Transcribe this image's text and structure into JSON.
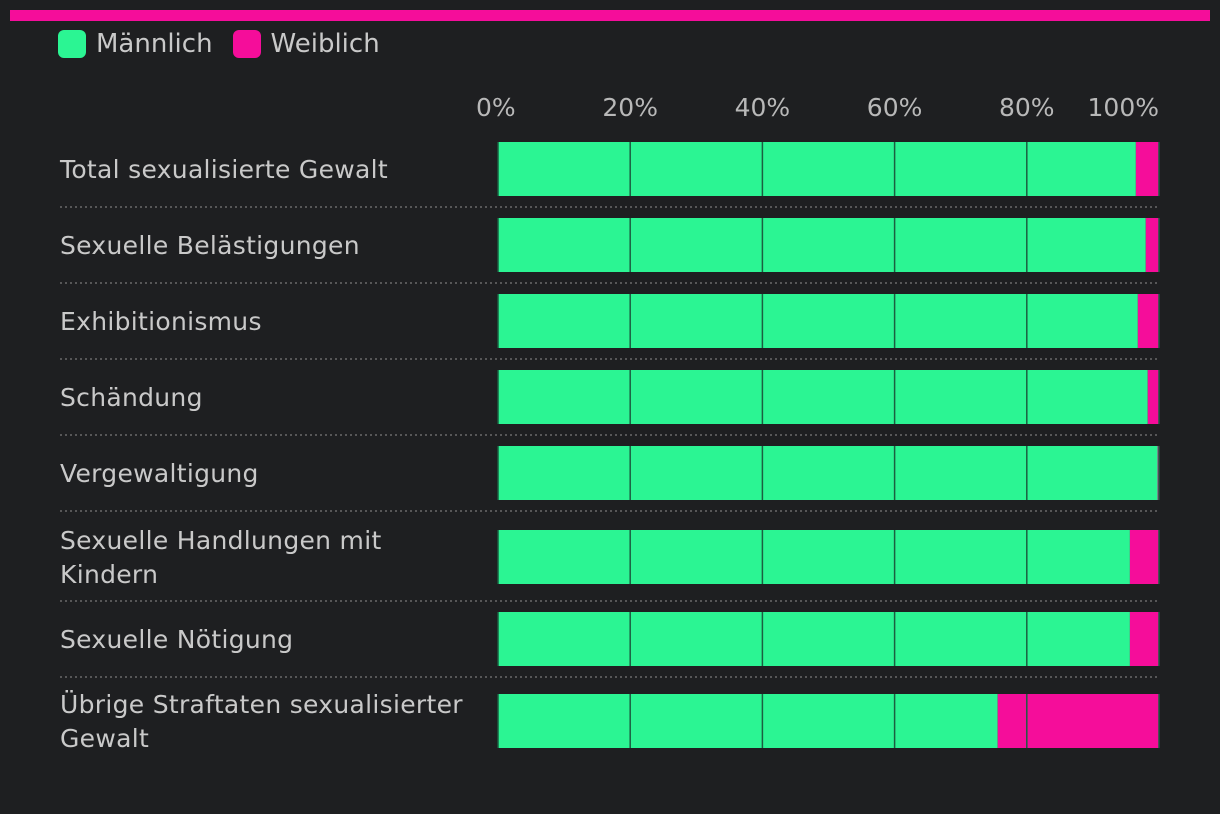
{
  "colors": {
    "male": "#2bf593",
    "female": "#f50d9a",
    "background": "#1e1f21",
    "gridline": "#1b5f41",
    "separator": "#6a6a6a"
  },
  "legend": {
    "male_label": "Männlich",
    "female_label": "Weiblich"
  },
  "chart_data": {
    "type": "bar",
    "orientation": "horizontal",
    "stacked": true,
    "xlim": [
      0,
      100
    ],
    "ticks": [
      "0%",
      "20%",
      "40%",
      "60%",
      "80%",
      "100%"
    ],
    "tick_values": [
      0,
      20,
      40,
      60,
      80,
      100
    ],
    "categories": [
      [
        "Total sexualisierte Gewalt"
      ],
      [
        "Sexuelle Belästigungen"
      ],
      [
        "Exhibitionismus"
      ],
      [
        "Schändung"
      ],
      [
        "Vergewaltigung"
      ],
      [
        "Sexuelle Handlungen mit",
        "Kindern"
      ],
      [
        "Sexuelle Nötigung"
      ],
      [
        "Übrige Straftaten sexualisierter",
        "Gewalt"
      ]
    ],
    "series": [
      {
        "name": "Männlich",
        "values": [
          96.5,
          98,
          96.8,
          98.3,
          99.8,
          95.6,
          95.6,
          75.6
        ]
      },
      {
        "name": "Weiblich",
        "values": [
          3.5,
          2,
          3.2,
          1.7,
          0.2,
          4.4,
          4.4,
          24.4
        ]
      }
    ]
  }
}
